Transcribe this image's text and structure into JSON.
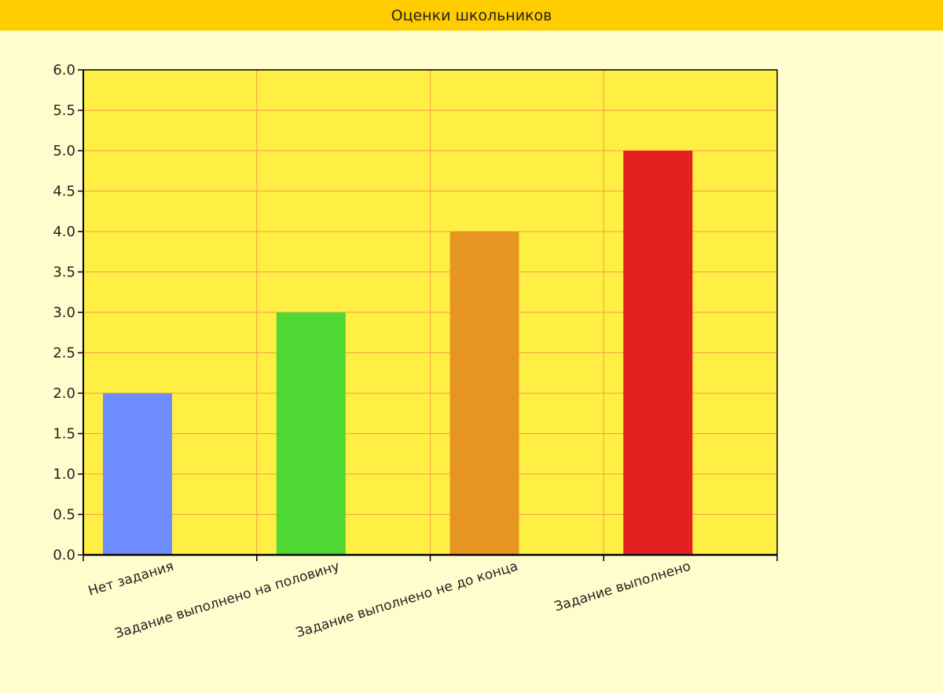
{
  "header": {
    "title": "Оценки школьников"
  },
  "colors": {
    "page_background": "#fffdcd",
    "header_background": "#ffcc00",
    "plot_background": "#ffee44",
    "grid": "#f5a040",
    "axis": "#000000"
  },
  "chart_data": {
    "type": "bar",
    "title": "Оценки школьников",
    "xlabel": "",
    "ylabel": "",
    "ylim": [
      0,
      6
    ],
    "ytick_step": 0.5,
    "yticks": [
      "0.0",
      "0.5",
      "1.0",
      "1.5",
      "2.0",
      "2.5",
      "3.0",
      "3.5",
      "4.0",
      "4.5",
      "5.0",
      "5.5",
      "6.0"
    ],
    "grid": true,
    "legend": "none",
    "categories": [
      "Нет задания",
      "Задание выполнено на половину",
      "Задание выполнено не до конца",
      "Задание выполнено"
    ],
    "values": [
      2,
      3,
      4,
      5
    ],
    "bar_colors": [
      "#6f8dff",
      "#4fd734",
      "#e59520",
      "#e52020"
    ]
  }
}
